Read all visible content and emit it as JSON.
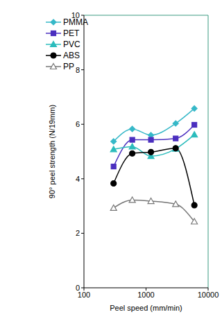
{
  "chart_data": {
    "type": "line",
    "x_label": "Peel speed (mm/min)",
    "y_label": "90° peel strength (N/19mm)",
    "x": [
      300,
      600,
      1200,
      3000,
      6000
    ],
    "xlim": [
      100,
      10000
    ],
    "xticks": [
      100,
      1000,
      10000
    ],
    "ylim": [
      0,
      10
    ],
    "yticks": [
      0,
      2,
      4,
      6,
      8,
      10
    ],
    "log": "x",
    "grid": false,
    "legend": "top-left",
    "series": [
      {
        "name": "PMMA",
        "color": "#36b8c8",
        "marker": "diamond",
        "values": [
          5.37,
          5.83,
          5.6,
          6.03,
          6.58
        ]
      },
      {
        "name": "PET",
        "color": "#4b2fbf",
        "marker": "square",
        "values": [
          4.45,
          5.43,
          5.43,
          5.48,
          5.98
        ]
      },
      {
        "name": "PVC",
        "color": "#2bbcbc",
        "marker": "triangle",
        "values": [
          5.08,
          5.18,
          4.83,
          5.1,
          5.62
        ]
      },
      {
        "name": "ABS",
        "color": "#000000",
        "marker": "circle",
        "values": [
          3.83,
          4.93,
          4.98,
          5.12,
          3.03
        ]
      },
      {
        "name": "PP",
        "color": "#777777",
        "marker": "open-triangle",
        "values": [
          2.93,
          3.22,
          3.18,
          3.07,
          2.43
        ]
      }
    ]
  }
}
